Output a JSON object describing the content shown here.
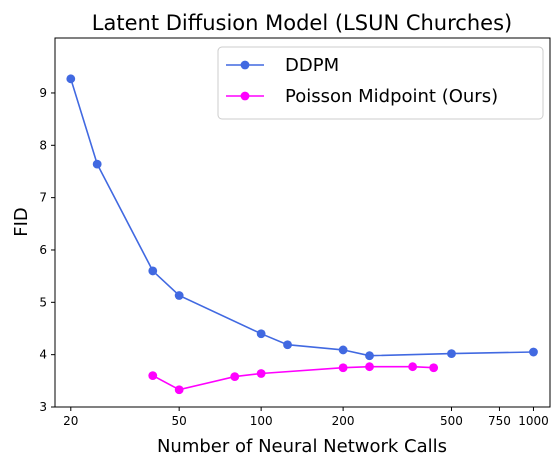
{
  "chart_data": {
    "type": "line",
    "title": "Latent Diffusion Model (LSUN Churches)",
    "xlabel": "Number of Neural Network Calls",
    "ylabel": "FID",
    "xscale": "log",
    "xlim": [
      17.5,
      1150
    ],
    "ylim": [
      3,
      10.05
    ],
    "xticks": [
      {
        "value": 20,
        "label": "20"
      },
      {
        "value": 50,
        "label": "50"
      },
      {
        "value": 100,
        "label": "100"
      },
      {
        "value": 200,
        "label": "200"
      },
      {
        "value": 500,
        "label": "500"
      },
      {
        "value": 750,
        "label": "750"
      },
      {
        "value": 1000,
        "label": "1000"
      }
    ],
    "yticks": [
      {
        "value": 3,
        "label": "3"
      },
      {
        "value": 4,
        "label": "4"
      },
      {
        "value": 5,
        "label": "5"
      },
      {
        "value": 6,
        "label": "6"
      },
      {
        "value": 7,
        "label": "7"
      },
      {
        "value": 8,
        "label": "8"
      },
      {
        "value": 9,
        "label": "9"
      }
    ],
    "grid": false,
    "legend": "top-right",
    "series": [
      {
        "name": "DDPM",
        "color": "#4169e1",
        "x": [
          20,
          25,
          40,
          50,
          100,
          125,
          200,
          250,
          500,
          1000
        ],
        "y": [
          9.27,
          7.64,
          5.6,
          5.13,
          4.4,
          4.19,
          4.09,
          3.98,
          4.02,
          4.05
        ]
      },
      {
        "name": "Poisson Midpoint (Ours)",
        "color": "#ff00ff",
        "x": [
          40,
          50,
          80,
          100,
          200,
          250,
          360,
          430
        ],
        "y": [
          3.6,
          3.33,
          3.58,
          3.64,
          3.75,
          3.77,
          3.77,
          3.75
        ]
      }
    ]
  }
}
